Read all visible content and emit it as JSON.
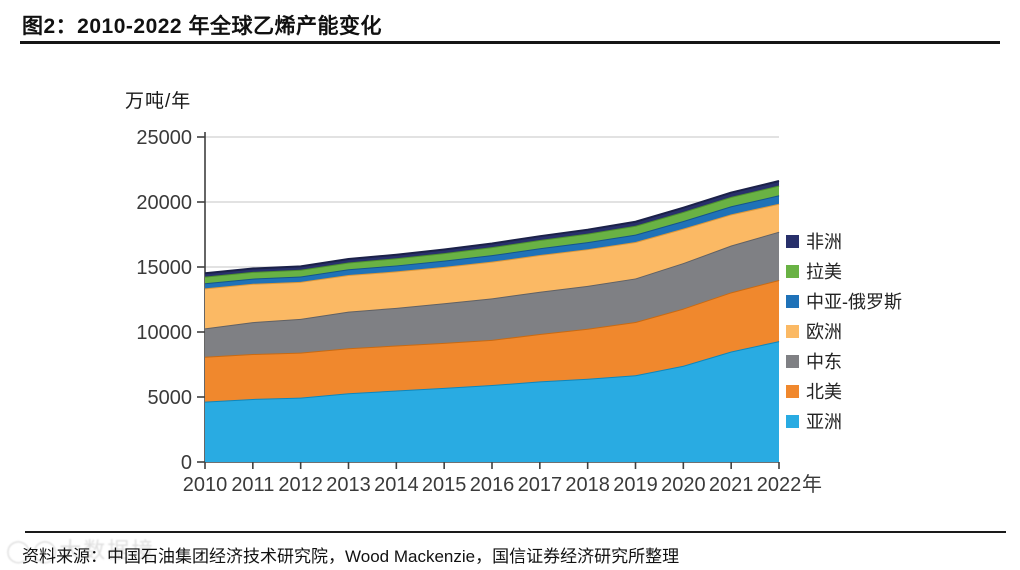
{
  "figure": {
    "title": "图2：2010-2022 年全球乙烯产能变化",
    "source": "资料来源：中国石油集团经济技术研究院，Wood Mackenzie，国信证券经济研究所整理",
    "watermark_text": "◯◯大数据境"
  },
  "chart_data": {
    "type": "area",
    "stacked": true,
    "title": "2010-2022 年全球乙烯产能变化",
    "ylabel": "万吨/年",
    "xlabel": "年",
    "x_suffix": "年",
    "ylim": [
      0,
      25000
    ],
    "y_ticks": [
      0,
      5000,
      10000,
      15000,
      20000,
      25000
    ],
    "grid": true,
    "grid_color": "#d9d9d9",
    "axis_color": "#404040",
    "tick_label_color": "#3a3a3a",
    "legend_position": "right",
    "categories": [
      "2010",
      "2011",
      "2012",
      "2013",
      "2014",
      "2015",
      "2016",
      "2017",
      "2018",
      "2019",
      "2020",
      "2021",
      "2022"
    ],
    "series": [
      {
        "id": "asia",
        "name": "亚洲",
        "color": "#29abe2",
        "edge": "#0e86bc",
        "values": [
          4640,
          4850,
          4950,
          5290,
          5500,
          5700,
          5920,
          6200,
          6400,
          6670,
          7400,
          8500,
          9300
        ]
      },
      {
        "id": "north-america",
        "name": "北美",
        "color": "#f0882d",
        "edge": "#c96a12",
        "values": [
          3460,
          3460,
          3460,
          3460,
          3460,
          3460,
          3470,
          3650,
          3850,
          4100,
          4400,
          4550,
          4700
        ]
      },
      {
        "id": "middle-east",
        "name": "中东",
        "color": "#7f8084",
        "edge": "#606165",
        "values": [
          2180,
          2450,
          2600,
          2815,
          2900,
          3050,
          3200,
          3250,
          3300,
          3350,
          3500,
          3600,
          3715
        ]
      },
      {
        "id": "europe",
        "name": "欧洲",
        "color": "#fbb964",
        "edge": "#de9838",
        "values": [
          3080,
          2950,
          2850,
          2820,
          2800,
          2800,
          2820,
          2820,
          2820,
          2800,
          2650,
          2400,
          2150
        ]
      },
      {
        "id": "central-asia-russia",
        "name": "中亚-俄罗斯",
        "color": "#1f72b8",
        "edge": "#14548c",
        "values": [
          390,
          400,
          410,
          440,
          460,
          480,
          500,
          520,
          540,
          570,
          590,
          620,
          650
        ]
      },
      {
        "id": "latin-america",
        "name": "拉美",
        "color": "#69b244",
        "edge": "#4c8f2e",
        "values": [
          510,
          515,
          520,
          525,
          550,
          580,
          620,
          640,
          660,
          680,
          700,
          720,
          750
        ]
      },
      {
        "id": "africa",
        "name": "非洲",
        "color": "#28306b",
        "edge": "#1b2148",
        "values": [
          260,
          260,
          260,
          265,
          270,
          275,
          280,
          290,
          300,
          310,
          320,
          335,
          350
        ]
      }
    ]
  }
}
